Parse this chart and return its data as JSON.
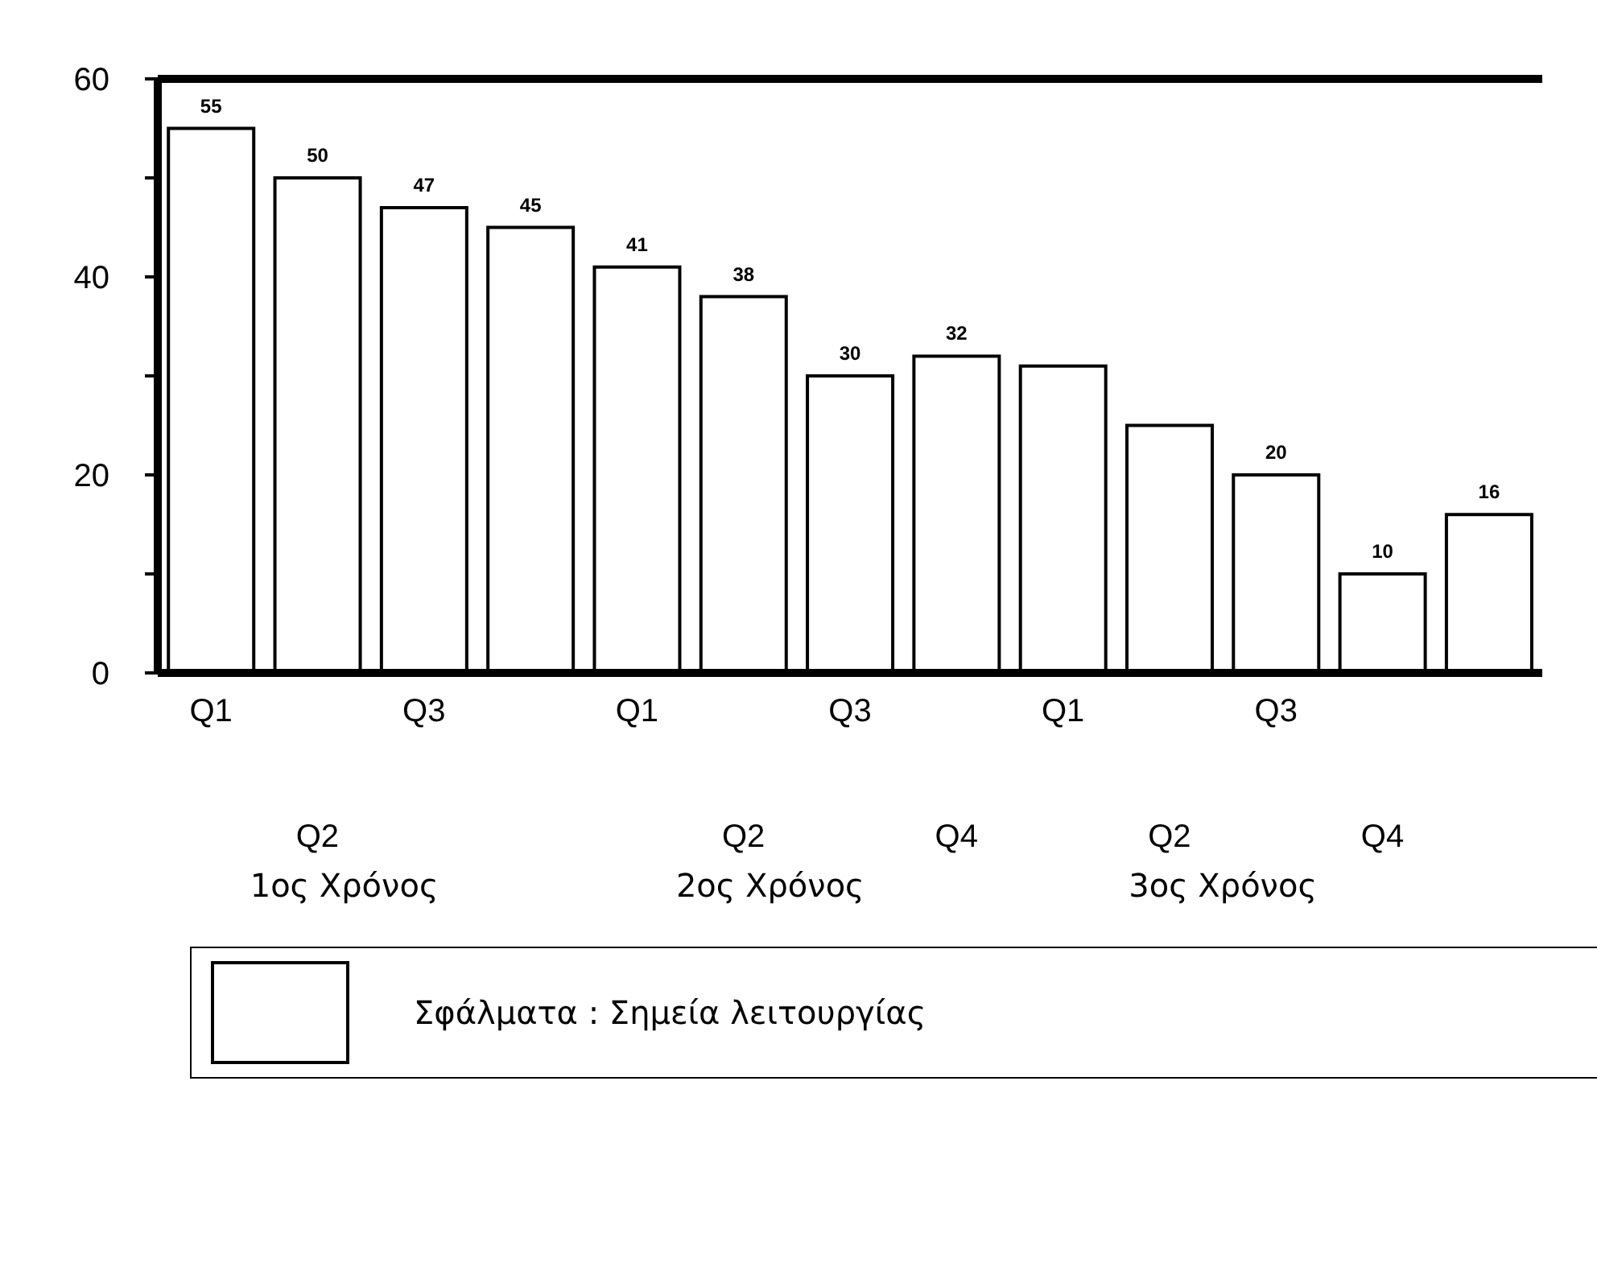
{
  "chart_data": {
    "type": "bar",
    "categories": [
      "Q1",
      "Q2",
      "Q3",
      null,
      "Q1",
      "Q2",
      "Q3",
      "Q4",
      "Q1",
      "Q2",
      "Q3",
      "Q4",
      null
    ],
    "series": [
      {
        "name": "Σφάλματα : Σημεία λειτουργίας",
        "color": "#ffffff",
        "values": [
          55,
          50,
          47,
          45,
          41,
          38,
          30,
          32,
          31,
          25,
          20,
          10,
          16
        ],
        "value_labels": [
          "55",
          "50",
          "47",
          "45",
          "41",
          "38",
          "30",
          "32",
          null,
          null,
          "20",
          "10",
          "16"
        ]
      }
    ],
    "ylim": [
      0,
      60
    ],
    "yticks": [
      0,
      {
        "value": 10,
        "label": null
      },
      20,
      {
        "value": 30,
        "label": null
      },
      40,
      {
        "value": 50,
        "label": null
      },
      60
    ],
    "annotations": [
      "1ος Χρόνος",
      "2ος Χρόνος",
      "3ος Χρόνος"
    ],
    "grid": false,
    "legend": "bottom"
  }
}
